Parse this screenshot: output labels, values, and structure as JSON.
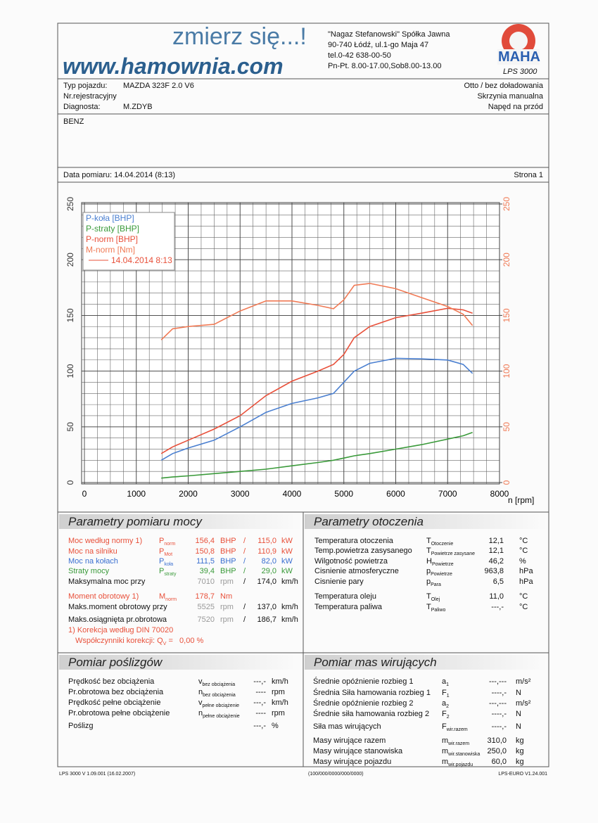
{
  "header": {
    "slogan": "zmierz się...!",
    "website": "www.hamownia.com",
    "company": [
      "\"Nagaz Stefanowski\" Spółka Jawna",
      "90-740 Łódź, ul.1-go Maja 47",
      "tel.0-42 638-00-50",
      "Pn-Pt. 8.00-17.00,Sob8.00-13.00"
    ],
    "logo": "MAHA",
    "product": "LPS 3000"
  },
  "vehicle": {
    "rows": [
      {
        "label": "Typ pojazdu:",
        "value": "MAZDA 323F 2.0 V6"
      },
      {
        "label": "Nr.rejestracyjny"
      },
      {
        "label": "Diagnosta:",
        "value": "M.ZDYB"
      }
    ],
    "right": [
      "Otto / bez doładowania",
      "Skrzynia manualna",
      "Napęd na przód"
    ],
    "note": "BENZ",
    "date": "Data pomiaru: 14.04.2014 (8:13)",
    "page": "Strona 1"
  },
  "chart_data": {
    "type": "line",
    "x": [
      1480,
      1700,
      2000,
      2500,
      3000,
      3500,
      4000,
      4500,
      4800,
      5000,
      5200,
      5500,
      6000,
      6500,
      7000,
      7300,
      7480
    ],
    "series": [
      {
        "name": "P-koła [BHP]",
        "color": "#4a7fd0",
        "values": [
          20,
          26,
          31,
          38,
          50,
          63,
          71,
          76,
          80,
          90,
          100,
          107,
          111.5,
          111,
          110,
          106,
          98
        ]
      },
      {
        "name": "P-straty [BHP]",
        "color": "#3a9a3a",
        "values": [
          4,
          5,
          6,
          8,
          10,
          12,
          15,
          18,
          20,
          22,
          24,
          26,
          30,
          34,
          39,
          42,
          45
        ]
      },
      {
        "name": "P-norm [BHP]",
        "color": "#e8503a",
        "values": [
          26,
          32,
          38,
          48,
          60,
          78,
          91,
          100,
          106,
          115,
          130,
          140,
          148,
          152,
          156.4,
          155,
          152
        ]
      },
      {
        "name": "M-norm [Nm]",
        "color": "#f07a55",
        "axis": "y2",
        "values": [
          128,
          138,
          140,
          142,
          154,
          163,
          163,
          159,
          156,
          164,
          177,
          178.7,
          174,
          166,
          158,
          151,
          141
        ]
      }
    ],
    "legend_note": "14.04.2014 8:13",
    "legend_loc": "upper left",
    "xlabel": "n [rpm]",
    "xlim": [
      0,
      8000
    ],
    "xticks": [
      0,
      1000,
      2000,
      3000,
      4000,
      5000,
      6000,
      7000,
      8000
    ],
    "ylim": [
      0,
      250
    ],
    "yticks": [
      0,
      50,
      100,
      150,
      200,
      250
    ],
    "y2lim": [
      0,
      250
    ],
    "y2ticks": [
      0,
      50,
      100,
      150,
      200,
      250
    ],
    "grid": true
  },
  "power": {
    "title": "Parametry pomiaru mocy",
    "rows": [
      {
        "label": "Moc według normy 1)",
        "sym": "P",
        "sub": "norm",
        "v1": "156,4",
        "u1": "BHP",
        "sep": "/",
        "v2": "115,0",
        "u2": "kW",
        "color": "#e8503a"
      },
      {
        "label": "Moc na silniku",
        "sym": "P",
        "sub": "Mot",
        "v1": "150,8",
        "u1": "BHP",
        "sep": "/",
        "v2": "110,9",
        "u2": "kW",
        "color": "#e8503a"
      },
      {
        "label": "Moc na kołach",
        "sym": "P",
        "sub": "koła",
        "v1": "111,5",
        "u1": "BHP",
        "sep": "/",
        "v2": "82,0",
        "u2": "kW",
        "color": "#3a6fd0"
      },
      {
        "label": "Straty mocy",
        "sym": "P",
        "sub": "straty",
        "v1": "39,4",
        "u1": "BHP",
        "sep": "/",
        "v2": "29,0",
        "u2": "kW",
        "color": "#3a9a3a"
      },
      {
        "label": "Maksymalna moc przy",
        "v1": "7010",
        "u1": "rpm",
        "sep": "/",
        "v2": "174,0",
        "u2": "km/h",
        "value_color": "#999999"
      },
      {
        "label": "Moment obrotowy 1)",
        "sym": "M",
        "sub": "norm",
        "v1": "178,7",
        "u1": "Nm",
        "color": "#e8503a"
      },
      {
        "label": "Maks.moment obrotowy przy",
        "v1": "5525",
        "u1": "rpm",
        "sep": "/",
        "v2": "137,0",
        "u2": "km/h",
        "value_color": "#999999"
      },
      {
        "label": "Maks.osiągnięta pr.obrotowa",
        "v1": "7520",
        "u1": "rpm",
        "sep": "/",
        "v2": "186,7",
        "u2": "km/h",
        "value_color": "#999999"
      }
    ],
    "note1": "1) Korekcja według DIN 70020",
    "note2": {
      "text": "Współczynniki korekcji: Q",
      "sub": "V",
      "rest": "=   0,00 %"
    }
  },
  "environment": {
    "title": "Parametry otoczenia",
    "rows": [
      {
        "label": "Temperatura otoczenia",
        "sym": "T",
        "sub": "Otoczenie",
        "value": "12,1",
        "unit": "°C"
      },
      {
        "label": "Temp.powietrza zasysanego",
        "sym": "T",
        "sub": "Powietrze zasysane",
        "value": "12,1",
        "unit": "°C"
      },
      {
        "label": "Wilgotność powietrza",
        "sym": "H",
        "sub": "Powietrze",
        "value": "46,2",
        "unit": "%"
      },
      {
        "label": "Cisnienie atmosferyczne",
        "sym": "p",
        "sub": "Powietrze",
        "value": "963,8",
        "unit": "hPa"
      },
      {
        "label": "Cisnienie pary",
        "sym": "p",
        "sub": "Para",
        "value": "6,5",
        "unit": "hPa"
      },
      {
        "label": "Temperatura oleju",
        "sym": "T",
        "sub": "Olej",
        "value": "11,0",
        "unit": "°C"
      },
      {
        "label": "Temperatura paliwa",
        "sym": "T",
        "sub": "Paliwo",
        "value": "---,-",
        "unit": "°C"
      }
    ]
  },
  "slip": {
    "title": "Pomiar poślizgów",
    "rows": [
      {
        "label": "Prędkość bez obciążenia",
        "sym": "v",
        "sub": "bez obciążenia",
        "value": "---,-",
        "unit": "km/h"
      },
      {
        "label": "Pr.obrotowa bez obciążenia",
        "sym": "n",
        "sub": "bez obciążenia",
        "value": "----",
        "unit": "rpm"
      },
      {
        "label": "Prędkość pełne obciążenie",
        "sym": "v",
        "sub": "pełne obciążenie",
        "value": "---,-",
        "unit": "km/h"
      },
      {
        "label": "Pr.obrotowa pełne obciążenie",
        "sym": "n",
        "sub": "pełne obciążenie",
        "value": "----",
        "unit": "rpm"
      },
      {
        "label": "Poślizg",
        "value": "---,-",
        "unit": "%"
      }
    ]
  },
  "masses": {
    "title": "Pomiar mas wirujących",
    "rows": [
      {
        "label": "Średnie opóźnienie rozbieg 1",
        "sym": "a",
        "sub": "1",
        "value": "---,---",
        "unit": "m/s²"
      },
      {
        "label": "Średnia Siła hamowania rozbieg 1",
        "sym": "F",
        "sub": "1",
        "value": "----,-",
        "unit": "N"
      },
      {
        "label": "Średnie opóźnienie rozbieg 2",
        "sym": "a",
        "sub": "2",
        "value": "---,---",
        "unit": "m/s²"
      },
      {
        "label": "Średnie siła hamowania rozbieg 2",
        "sym": "F",
        "sub": "2",
        "value": "----,-",
        "unit": "N"
      },
      {
        "label": "Siła mas wirujących",
        "sym": "F",
        "sub": "wir.razem",
        "value": "----,-",
        "unit": "N"
      },
      {
        "label": "Masy wirujące razem",
        "sym": "m",
        "sub": "wir.razem",
        "value": "310,0",
        "unit": "kg"
      },
      {
        "label": "Masy wirujące stanowiska",
        "sym": "m",
        "sub": "wir.stanowiska",
        "value": "250,0",
        "unit": "kg"
      },
      {
        "label": "Masy wirujące pojazdu",
        "sym": "m",
        "sub": "wir.pojazdu",
        "value": "60,0",
        "unit": "kg"
      }
    ]
  },
  "footer": [
    "LPS 3000 V 1.09.001 (16.02.2007)",
    "(100/000/0000/000/0000)",
    "LPS-EURO V1.24.001"
  ]
}
